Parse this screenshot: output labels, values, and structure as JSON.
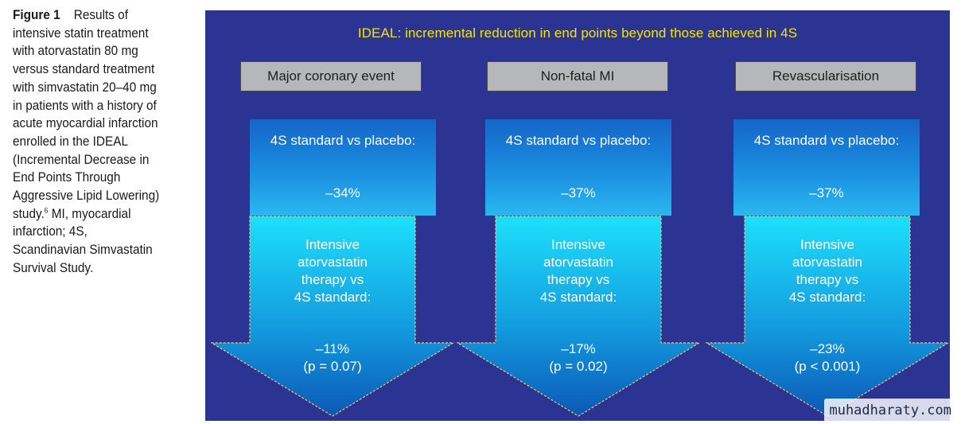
{
  "caption": {
    "label": "Figure 1",
    "text_lines": [
      "Results of",
      "intensive statin treatment",
      "with atorvastatin 80 mg",
      "versus standard treatment",
      "with simvastatin 20–40 mg",
      "in patients with a history of",
      "acute myocardial infarction",
      "enrolled in the IDEAL",
      "(Incremental Decrease in",
      "End Points Through",
      "Aggressive Lipid Lowering)"
    ],
    "study_word": "study.",
    "reference": "6",
    "text_after_ref_lines": [
      " MI, myocardial",
      "infarction; 4S,",
      "Scandinavian Simvastatin",
      "Survival Study."
    ]
  },
  "diagram": {
    "headline": "IDEAL: incremental reduction in end points beyond  those achieved in 4S",
    "colors": {
      "panel": "#2b3393",
      "headline": "#f2e600",
      "endpoint_box": "#b6b7ba",
      "box_top": "#1565c7",
      "box_bottom": "#2ab7f0"
    },
    "columns": [
      {
        "endpoint": "Major coronary event",
        "standard_label": "4S standard vs placebo:",
        "standard_value": "–34%",
        "intensive_lines": [
          "Intensive",
          "atorvastatin",
          "therapy vs",
          "4S standard:"
        ],
        "intensive_value": "–11%",
        "p_value": "(p = 0.07)"
      },
      {
        "endpoint": "Non-fatal MI",
        "standard_label": "4S standard vs placebo:",
        "standard_value": "–37%",
        "intensive_lines": [
          "Intensive",
          "atorvastatin",
          "therapy vs",
          "4S standard:"
        ],
        "intensive_value": "–17%",
        "p_value": "(p = 0.02)"
      },
      {
        "endpoint": "Revascularisation",
        "standard_label": "4S standard vs placebo:",
        "standard_value": "–37%",
        "intensive_lines": [
          "Intensive",
          "atorvastatin",
          "therapy vs",
          "4S standard:"
        ],
        "intensive_value": "–23%",
        "p_value": "(p < 0.001)"
      }
    ]
  },
  "watermark": "muhadharaty.com"
}
